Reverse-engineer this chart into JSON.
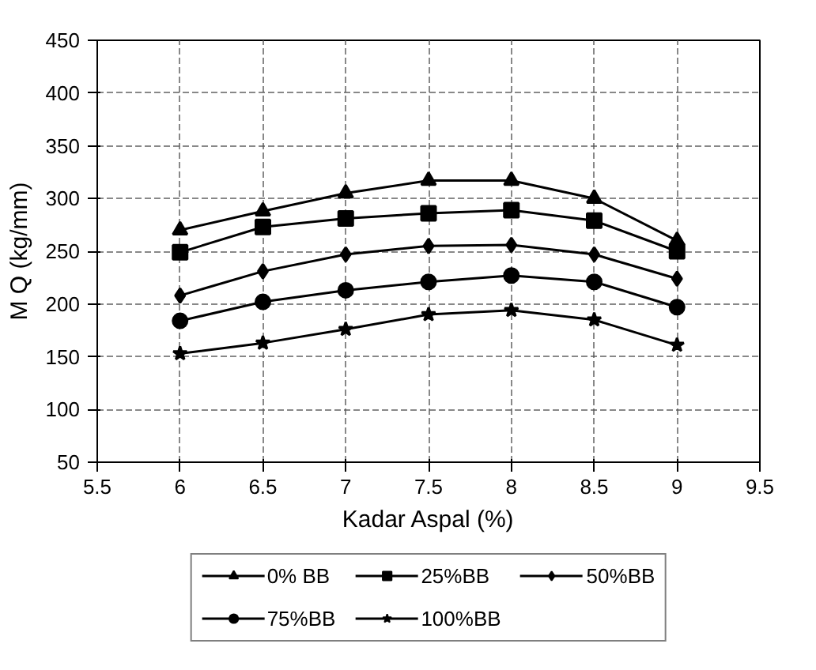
{
  "chart_data": {
    "type": "line",
    "xlabel": "Kadar Aspal (%)",
    "ylabel": "M Q (kg/mm)",
    "x": [
      6,
      6.5,
      7,
      7.5,
      8,
      8.5,
      9
    ],
    "xlim": [
      5.5,
      9.5
    ],
    "xticks": [
      5.5,
      6,
      6.5,
      7,
      7.5,
      8,
      8.5,
      9,
      9.5
    ],
    "ylim": [
      50,
      450
    ],
    "yticks": [
      50,
      100,
      150,
      200,
      250,
      300,
      350,
      400,
      450
    ],
    "grid": true,
    "legend": "bottom",
    "series": [
      {
        "name": "0% BB",
        "color": "#000000",
        "marker": "triangle",
        "values": [
          270,
          288,
          305,
          317,
          317,
          300,
          260
        ]
      },
      {
        "name": "25%BB",
        "color": "#000000",
        "marker": "square",
        "values": [
          249,
          273,
          281,
          286,
          289,
          279,
          250
        ]
      },
      {
        "name": "50%BB",
        "color": "#000000",
        "marker": "diamond",
        "values": [
          208,
          231,
          247,
          255,
          256,
          247,
          224
        ]
      },
      {
        "name": "75%BB",
        "color": "#000000",
        "marker": "circle",
        "values": [
          184,
          202,
          213,
          221,
          227,
          221,
          197
        ]
      },
      {
        "name": "100%BB",
        "color": "#000000",
        "marker": "star",
        "values": [
          153,
          163,
          176,
          190,
          194,
          185,
          161
        ]
      }
    ]
  }
}
